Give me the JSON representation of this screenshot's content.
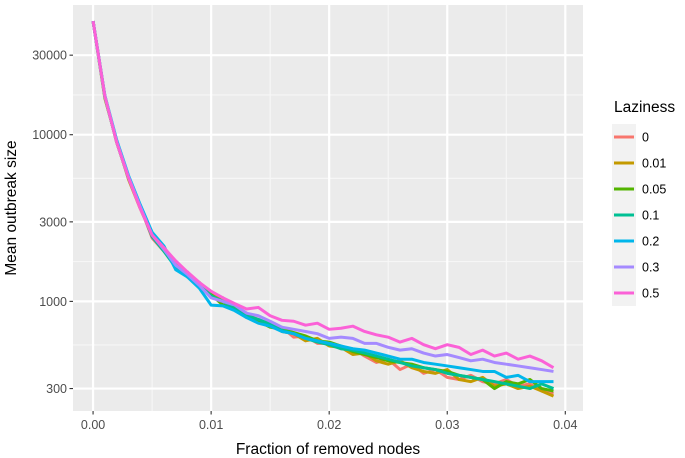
{
  "chart_data": {
    "type": "line",
    "title": "",
    "xlabel": "Fraction of removed nodes",
    "ylabel": "Mean outbreak size",
    "x_scale": "linear",
    "y_scale": "log",
    "xlim": [
      -0.0017,
      0.0415
    ],
    "ylim": [
      220,
      60000
    ],
    "x_ticks": [
      0.0,
      0.01,
      0.02,
      0.03,
      0.04
    ],
    "x_tick_labels": [
      "0.00",
      "0.01",
      "0.02",
      "0.03",
      "0.04"
    ],
    "y_ticks": [
      300,
      1000,
      3000,
      10000,
      30000
    ],
    "y_tick_labels": [
      "300",
      "1000",
      "3000",
      "10000",
      "30000"
    ],
    "grid": true,
    "legend": {
      "title": "Laziness",
      "position": "right"
    },
    "x": [
      0.0,
      0.001,
      0.002,
      0.003,
      0.004,
      0.005,
      0.006,
      0.007,
      0.008,
      0.009,
      0.01,
      0.011,
      0.012,
      0.013,
      0.014,
      0.015,
      0.016,
      0.017,
      0.018,
      0.019,
      0.02,
      0.021,
      0.022,
      0.023,
      0.024,
      0.025,
      0.026,
      0.027,
      0.028,
      0.029,
      0.03,
      0.031,
      0.032,
      0.033,
      0.034,
      0.035,
      0.036,
      0.037,
      0.038,
      0.039
    ],
    "series": [
      {
        "name": "0",
        "color": "#F8766D",
        "values": [
          48000,
          17000,
          9000,
          5500,
          3700,
          2400,
          2000,
          1650,
          1450,
          1280,
          1150,
          1000,
          920,
          830,
          780,
          720,
          700,
          610,
          620,
          560,
          560,
          520,
          520,
          470,
          430,
          450,
          390,
          420,
          370,
          390,
          350,
          340,
          360,
          330,
          320,
          340,
          310,
          320,
          290,
          280
        ]
      },
      {
        "name": "0.01",
        "color": "#C49A00",
        "values": [
          48000,
          16500,
          9200,
          5400,
          3600,
          2500,
          2050,
          1600,
          1500,
          1250,
          1100,
          1050,
          900,
          800,
          770,
          740,
          660,
          640,
          580,
          600,
          540,
          530,
          480,
          490,
          440,
          420,
          440,
          400,
          380,
          370,
          390,
          340,
          330,
          350,
          310,
          320,
          300,
          310,
          290,
          270
        ]
      },
      {
        "name": "0.05",
        "color": "#53B400",
        "values": [
          48000,
          17000,
          9000,
          5500,
          3650,
          2500,
          2100,
          1700,
          1400,
          1300,
          1100,
          950,
          930,
          850,
          760,
          700,
          680,
          650,
          620,
          580,
          570,
          540,
          500,
          480,
          460,
          440,
          430,
          420,
          400,
          390,
          380,
          360,
          350,
          340,
          300,
          330,
          320,
          340,
          300,
          290
        ]
      },
      {
        "name": "0.1",
        "color": "#00C094",
        "values": [
          48000,
          16800,
          9100,
          5500,
          3700,
          2450,
          2000,
          1600,
          1450,
          1250,
          1080,
          1000,
          900,
          820,
          780,
          730,
          670,
          640,
          600,
          570,
          550,
          520,
          510,
          490,
          470,
          450,
          430,
          410,
          400,
          390,
          370,
          360,
          350,
          340,
          330,
          320,
          310,
          300,
          320,
          300
        ]
      },
      {
        "name": "0.2",
        "color": "#00B6EB",
        "values": [
          48000,
          17200,
          9300,
          5700,
          3800,
          2600,
          2150,
          1550,
          1400,
          1200,
          950,
          940,
          880,
          800,
          740,
          710,
          660,
          640,
          600,
          580,
          560,
          540,
          520,
          510,
          490,
          470,
          450,
          450,
          430,
          420,
          410,
          400,
          390,
          380,
          380,
          350,
          360,
          330,
          330,
          330
        ]
      },
      {
        "name": "0.3",
        "color": "#A58AFF",
        "values": [
          48000,
          17000,
          9100,
          5600,
          3700,
          2500,
          2050,
          1650,
          1450,
          1250,
          1050,
          1000,
          950,
          850,
          820,
          760,
          700,
          680,
          660,
          640,
          600,
          610,
          600,
          560,
          560,
          530,
          510,
          520,
          490,
          470,
          480,
          460,
          440,
          450,
          430,
          420,
          410,
          400,
          390,
          380
        ]
      },
      {
        "name": "0.5",
        "color": "#FB61D7",
        "values": [
          48000,
          17000,
          9000,
          5500,
          3600,
          2500,
          2100,
          1750,
          1500,
          1300,
          1150,
          1050,
          970,
          900,
          920,
          820,
          770,
          760,
          720,
          740,
          680,
          690,
          710,
          660,
          630,
          610,
          570,
          600,
          550,
          520,
          550,
          530,
          480,
          510,
          470,
          490,
          450,
          470,
          440,
          400
        ]
      }
    ]
  }
}
